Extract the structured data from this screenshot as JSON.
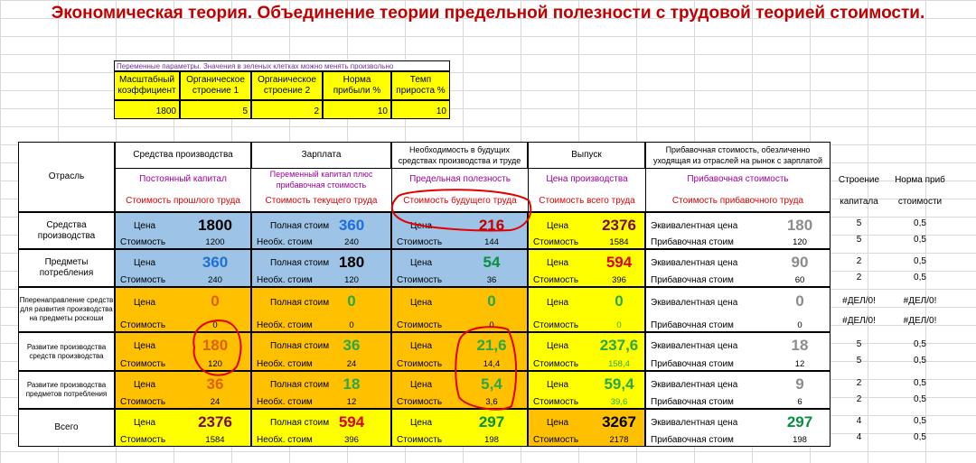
{
  "title": "Экономическая теория. Объединение теории предельной полезности с трудовой теорией стоимости.",
  "params": {
    "note": "Переменные параметры. Значения в зеленых клетках можно менять произвольно",
    "headers": [
      "Масштабный коэффициент",
      "Органическое строение 1",
      "Органическое строение 2",
      "Норма прибыли %",
      "Темп прироста %"
    ],
    "values": [
      "1800",
      "5",
      "2",
      "10",
      "10"
    ]
  },
  "table": {
    "otrasl_label": "Отрасль",
    "columns": [
      {
        "top": "Средства производства",
        "mid": "Постоянный капитал",
        "bot": "Стоимость прошлого труда"
      },
      {
        "top": "Зарплата",
        "mid": "Переменный капитал плюс прибавочная стоимость",
        "bot": "Стоимость текущего труда"
      },
      {
        "top": "Необходимость в будущих средствах производства и труде",
        "mid": "Предельная полезность",
        "bot": "Стоимость будущего труда"
      },
      {
        "top": "Выпуск",
        "mid": "Цена производства",
        "bot": "Стоимость всего труда"
      },
      {
        "top": "Прибавочная стоимость, обезличенно уходящая из отраслей на рынок с зарплатой",
        "mid": "Прибавочная стоимость",
        "bot": "Стоимость прибавочного труда"
      }
    ],
    "extra_headers": [
      "Строение",
      "Норма приб",
      "капитала",
      "стоимости"
    ],
    "cell_labels": {
      "price": "Цена",
      "cost": "Стоимость",
      "full_cost": "Полная стоим",
      "need_cost": "Необх. стоим",
      "equiv_price": "Эквивалентная цена",
      "surplus_cost": "Прибавочная стоим"
    },
    "rows": [
      {
        "name": "Средства производства",
        "c1": [
          "1800",
          "1200"
        ],
        "c2": [
          "360",
          "240"
        ],
        "c3": [
          "216",
          "144"
        ],
        "c4": [
          "2376",
          "1584"
        ],
        "c5": [
          "180",
          "120"
        ],
        "s": [
          "5",
          "5"
        ],
        "n": [
          "0,5",
          "0,5"
        ]
      },
      {
        "name": "Предметы потребления",
        "c1": [
          "360",
          "240"
        ],
        "c2": [
          "180",
          "120"
        ],
        "c3": [
          "54",
          "36"
        ],
        "c4": [
          "594",
          "396"
        ],
        "c5": [
          "90",
          "60"
        ],
        "s": [
          "2",
          "2"
        ],
        "n": [
          "0,5",
          "0,5"
        ]
      },
      {
        "name": "Пперенаправление средств для развития производства на предметы роскоши",
        "c1": [
          "0",
          "0"
        ],
        "c2": [
          "0",
          "0"
        ],
        "c3": [
          "0",
          "0"
        ],
        "c4": [
          "0",
          "0"
        ],
        "c5": [
          "0",
          "0"
        ],
        "s": [
          "#ДЕЛ/0!",
          "#ДЕЛ/0!"
        ],
        "n": [
          "#ДЕЛ/0!",
          "#ДЕЛ/0!"
        ]
      },
      {
        "name": "Развитие производства средств производства",
        "c1": [
          "180",
          "120"
        ],
        "c2": [
          "36",
          "24"
        ],
        "c3": [
          "21,6",
          "14,4"
        ],
        "c4": [
          "237,6",
          "158,4"
        ],
        "c5": [
          "18",
          "12"
        ],
        "s": [
          "5",
          "5"
        ],
        "n": [
          "0,5",
          "0,5"
        ]
      },
      {
        "name": "Развитие производства предметов потребления",
        "c1": [
          "36",
          "24"
        ],
        "c2": [
          "18",
          "12"
        ],
        "c3": [
          "5,4",
          "3,6"
        ],
        "c4": [
          "59,4",
          "39,6"
        ],
        "c5": [
          "9",
          "6"
        ],
        "s": [
          "2",
          "2"
        ],
        "n": [
          "0,5",
          "0,5"
        ]
      },
      {
        "name": "Всего",
        "c1": [
          "2376",
          "1584"
        ],
        "c2": [
          "594",
          "396"
        ],
        "c3": [
          "297",
          "198"
        ],
        "c4": [
          "3267",
          "2178"
        ],
        "c5": [
          "297",
          "198"
        ],
        "s": [
          "4",
          "4"
        ],
        "n": [
          "0,5",
          "0,5"
        ]
      }
    ]
  },
  "colors": {
    "yellow": "#ffff00",
    "blue": "#9dc3e6",
    "orange": "#ffc000",
    "title_red": "#c00000",
    "annotation_red": "#e00000"
  }
}
